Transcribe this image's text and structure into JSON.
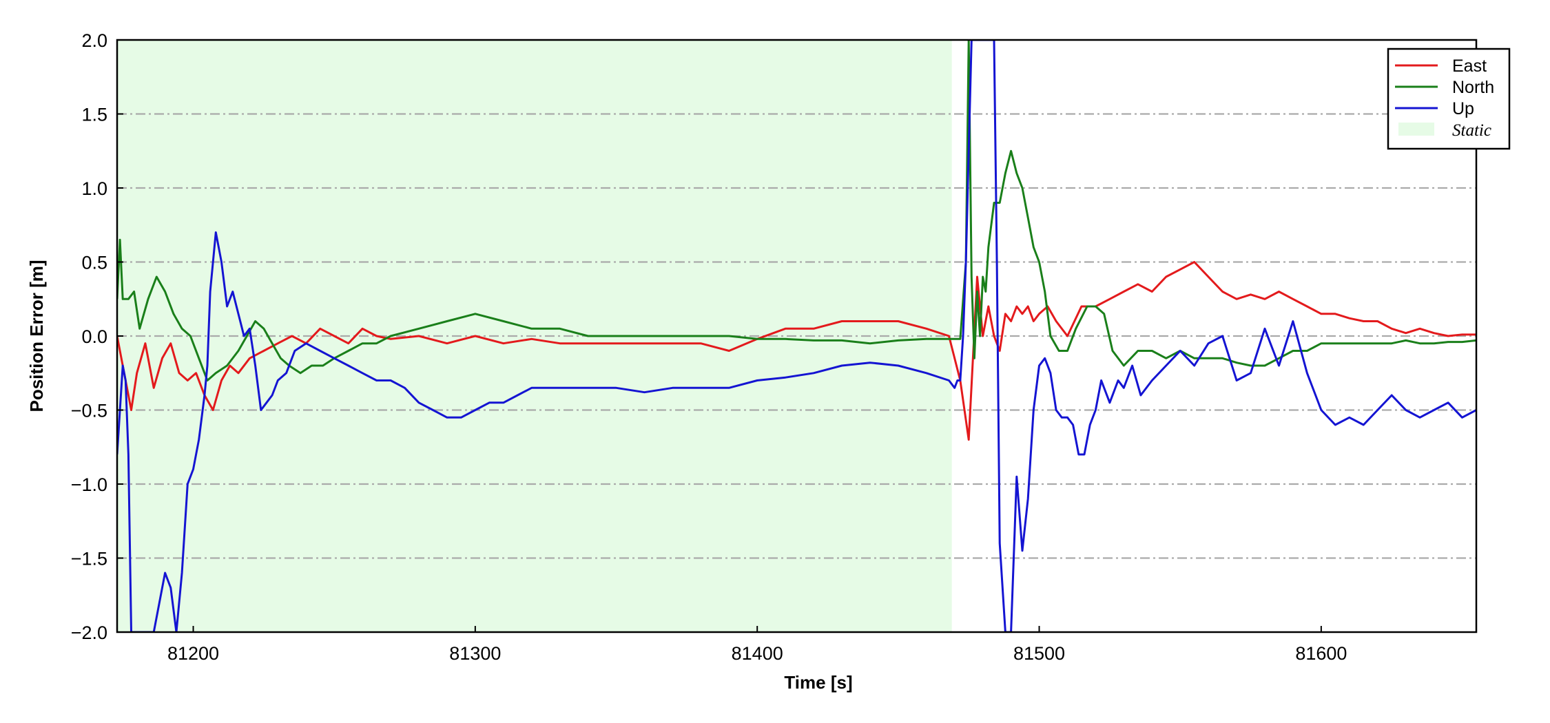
{
  "chart_data": {
    "type": "line",
    "title": "",
    "xlabel": "Time [s]",
    "ylabel": "Position Error [m]",
    "xlim": [
      81173,
      81655
    ],
    "ylim": [
      -2.0,
      2.0
    ],
    "xticks": [
      81200,
      81300,
      81400,
      81500,
      81600
    ],
    "xtick_labels": [
      "81200",
      "81300",
      "81400",
      "81500",
      "81600"
    ],
    "yticks": [
      2.0,
      1.5,
      1.0,
      0.5,
      0.0,
      -0.5,
      -1.0,
      -1.5,
      -2.0
    ],
    "ytick_labels": [
      "2.0",
      "1.5",
      "1.0",
      "0.5",
      "0.0",
      "−0.5",
      "−1.0",
      "−1.5",
      "−2.0"
    ],
    "grid": "horizontal dash-dot",
    "legend_position": "top-right",
    "shaded_region": {
      "label": "Static",
      "x_start": 81173,
      "x_end": 81469,
      "color": "#e6fbe6"
    },
    "series": [
      {
        "name": "East",
        "color": "#e31a1c",
        "x": [
          81173,
          81176,
          81178,
          81180,
          81183,
          81186,
          81189,
          81192,
          81195,
          81198,
          81201,
          81204,
          81207,
          81210,
          81213,
          81216,
          81220,
          81225,
          81230,
          81235,
          81240,
          81245,
          81250,
          81255,
          81260,
          81265,
          81270,
          81280,
          81290,
          81300,
          81310,
          81320,
          81330,
          81340,
          81350,
          81360,
          81370,
          81380,
          81390,
          81400,
          81410,
          81420,
          81430,
          81440,
          81450,
          81460,
          81468,
          81472,
          81475,
          81478,
          81480,
          81482,
          81484,
          81486,
          81488,
          81490,
          81492,
          81494,
          81496,
          81498,
          81500,
          81503,
          81506,
          81510,
          81515,
          81520,
          81525,
          81530,
          81535,
          81540,
          81545,
          81550,
          81555,
          81560,
          81565,
          81570,
          81575,
          81580,
          81585,
          81590,
          81595,
          81600,
          81605,
          81610,
          81615,
          81620,
          81625,
          81630,
          81635,
          81640,
          81645,
          81650,
          81655
        ],
        "values": [
          0.0,
          -0.3,
          -0.5,
          -0.25,
          -0.05,
          -0.35,
          -0.15,
          -0.05,
          -0.25,
          -0.3,
          -0.25,
          -0.4,
          -0.5,
          -0.3,
          -0.2,
          -0.25,
          -0.15,
          -0.1,
          -0.05,
          0.0,
          -0.05,
          0.05,
          0.0,
          -0.05,
          0.05,
          0.0,
          -0.02,
          0.0,
          -0.05,
          0.0,
          -0.05,
          -0.02,
          -0.05,
          -0.05,
          -0.05,
          -0.05,
          -0.05,
          -0.05,
          -0.1,
          -0.02,
          0.05,
          0.05,
          0.1,
          0.1,
          0.1,
          0.05,
          0.0,
          -0.3,
          -0.7,
          0.4,
          0.0,
          0.2,
          0.0,
          -0.1,
          0.15,
          0.1,
          0.2,
          0.15,
          0.2,
          0.1,
          0.15,
          0.2,
          0.1,
          0.0,
          0.2,
          0.2,
          0.25,
          0.3,
          0.35,
          0.3,
          0.4,
          0.45,
          0.5,
          0.4,
          0.3,
          0.25,
          0.28,
          0.25,
          0.3,
          0.25,
          0.2,
          0.15,
          0.15,
          0.12,
          0.1,
          0.1,
          0.05,
          0.02,
          0.05,
          0.02,
          0.0,
          0.01,
          0.01
        ]
      },
      {
        "name": "North",
        "color": "#1a7f1a",
        "x": [
          81173,
          81174,
          81175,
          81177,
          81179,
          81181,
          81184,
          81187,
          81190,
          81193,
          81196,
          81199,
          81202,
          81205,
          81208,
          81212,
          81216,
          81219,
          81222,
          81225,
          81228,
          81231,
          81234,
          81238,
          81242,
          81246,
          81250,
          81255,
          81260,
          81265,
          81270,
          81280,
          81290,
          81300,
          81310,
          81320,
          81330,
          81340,
          81350,
          81360,
          81370,
          81380,
          81390,
          81400,
          81410,
          81420,
          81430,
          81440,
          81450,
          81460,
          81468,
          81472,
          81474,
          81475,
          81476,
          81477,
          81478,
          81479,
          81480,
          81481,
          81482,
          81484,
          81486,
          81488,
          81490,
          81492,
          81494,
          81496,
          81498,
          81500,
          81502,
          81504,
          81507,
          81510,
          81513,
          81517,
          81520,
          81523,
          81526,
          81530,
          81535,
          81540,
          81545,
          81550,
          81555,
          81560,
          81565,
          81570,
          81575,
          81580,
          81585,
          81590,
          81595,
          81600,
          81605,
          81610,
          81615,
          81620,
          81625,
          81630,
          81635,
          81640,
          81645,
          81650,
          81655
        ],
        "values": [
          0.25,
          0.65,
          0.25,
          0.25,
          0.3,
          0.05,
          0.25,
          0.4,
          0.3,
          0.15,
          0.05,
          0.0,
          -0.15,
          -0.3,
          -0.25,
          -0.2,
          -0.1,
          0.0,
          0.1,
          0.05,
          -0.05,
          -0.15,
          -0.2,
          -0.25,
          -0.2,
          -0.2,
          -0.15,
          -0.1,
          -0.05,
          -0.05,
          0.0,
          0.05,
          0.1,
          0.15,
          0.1,
          0.05,
          0.05,
          0.0,
          0.0,
          0.0,
          0.0,
          0.0,
          0.0,
          -0.02,
          -0.02,
          -0.03,
          -0.03,
          -0.05,
          -0.03,
          -0.02,
          -0.02,
          -0.02,
          0.5,
          2.0,
          0.4,
          -0.15,
          0.3,
          0.0,
          0.4,
          0.3,
          0.6,
          0.9,
          0.9,
          1.1,
          1.25,
          1.1,
          1.0,
          0.8,
          0.6,
          0.5,
          0.3,
          0.0,
          -0.1,
          -0.1,
          0.05,
          0.2,
          0.2,
          0.15,
          -0.1,
          -0.2,
          -0.1,
          -0.1,
          -0.15,
          -0.1,
          -0.15,
          -0.15,
          -0.15,
          -0.18,
          -0.2,
          -0.2,
          -0.15,
          -0.1,
          -0.1,
          -0.05,
          -0.05,
          -0.05,
          -0.05,
          -0.05,
          -0.05,
          -0.03,
          -0.05,
          -0.05,
          -0.04,
          -0.04,
          -0.03
        ]
      },
      {
        "name": "Up",
        "color": "#1414d2",
        "x": [
          81173,
          81174,
          81175,
          81176,
          81177,
          81178,
          81180,
          81182,
          81184,
          81186,
          81188,
          81190,
          81192,
          81194,
          81196,
          81198,
          81200,
          81202,
          81204,
          81205,
          81206,
          81208,
          81210,
          81212,
          81214,
          81216,
          81218,
          81220,
          81222,
          81224,
          81226,
          81228,
          81230,
          81233,
          81236,
          81240,
          81245,
          81250,
          81255,
          81260,
          81265,
          81270,
          81275,
          81280,
          81285,
          81290,
          81295,
          81300,
          81305,
          81310,
          81315,
          81320,
          81325,
          81330,
          81340,
          81350,
          81360,
          81370,
          81380,
          81390,
          81400,
          81410,
          81420,
          81430,
          81440,
          81450,
          81460,
          81468,
          81470,
          81471,
          81472,
          81473,
          81474,
          81476,
          81478,
          81480,
          81481,
          81482,
          81484,
          81485,
          81486,
          81488,
          81490,
          81492,
          81494,
          81496,
          81498,
          81500,
          81502,
          81504,
          81506,
          81508,
          81510,
          81512,
          81514,
          81516,
          81518,
          81520,
          81522,
          81525,
          81528,
          81530,
          81533,
          81536,
          81540,
          81545,
          81550,
          81555,
          81560,
          81565,
          81570,
          81575,
          81580,
          81585,
          81590,
          81595,
          81600,
          81605,
          81610,
          81615,
          81620,
          81625,
          81630,
          81635,
          81640,
          81645,
          81650,
          81655
        ],
        "values": [
          -0.8,
          -0.5,
          -0.2,
          -0.3,
          -0.8,
          -2.0,
          -2.0,
          -2.0,
          -2.0,
          -2.0,
          -1.8,
          -1.6,
          -1.7,
          -2.0,
          -1.6,
          -1.0,
          -0.9,
          -0.7,
          -0.4,
          -0.2,
          0.3,
          0.7,
          0.5,
          0.2,
          0.3,
          0.15,
          0.0,
          0.05,
          -0.2,
          -0.5,
          -0.45,
          -0.4,
          -0.3,
          -0.25,
          -0.1,
          -0.05,
          -0.1,
          -0.15,
          -0.2,
          -0.25,
          -0.3,
          -0.3,
          -0.35,
          -0.45,
          -0.5,
          -0.55,
          -0.55,
          -0.5,
          -0.45,
          -0.45,
          -0.4,
          -0.35,
          -0.35,
          -0.35,
          -0.35,
          -0.35,
          -0.38,
          -0.35,
          -0.35,
          -0.35,
          -0.3,
          -0.28,
          -0.25,
          -0.2,
          -0.18,
          -0.2,
          -0.25,
          -0.3,
          -0.35,
          -0.3,
          -0.3,
          0.0,
          0.5,
          2.0,
          2.0,
          2.0,
          2.0,
          2.0,
          2.0,
          0.5,
          -1.4,
          -2.0,
          -2.0,
          -0.95,
          -1.45,
          -1.1,
          -0.5,
          -0.2,
          -0.15,
          -0.25,
          -0.5,
          -0.55,
          -0.55,
          -0.6,
          -0.8,
          -0.8,
          -0.6,
          -0.5,
          -0.3,
          -0.45,
          -0.3,
          -0.35,
          -0.2,
          -0.4,
          -0.3,
          -0.2,
          -0.1,
          -0.2,
          -0.05,
          0.0,
          -0.3,
          -0.25,
          0.05,
          -0.2,
          0.1,
          -0.25,
          -0.5,
          -0.6,
          -0.55,
          -0.6,
          -0.5,
          -0.4,
          -0.5,
          -0.55,
          -0.5,
          -0.45,
          -0.55,
          -0.5
        ]
      }
    ]
  }
}
